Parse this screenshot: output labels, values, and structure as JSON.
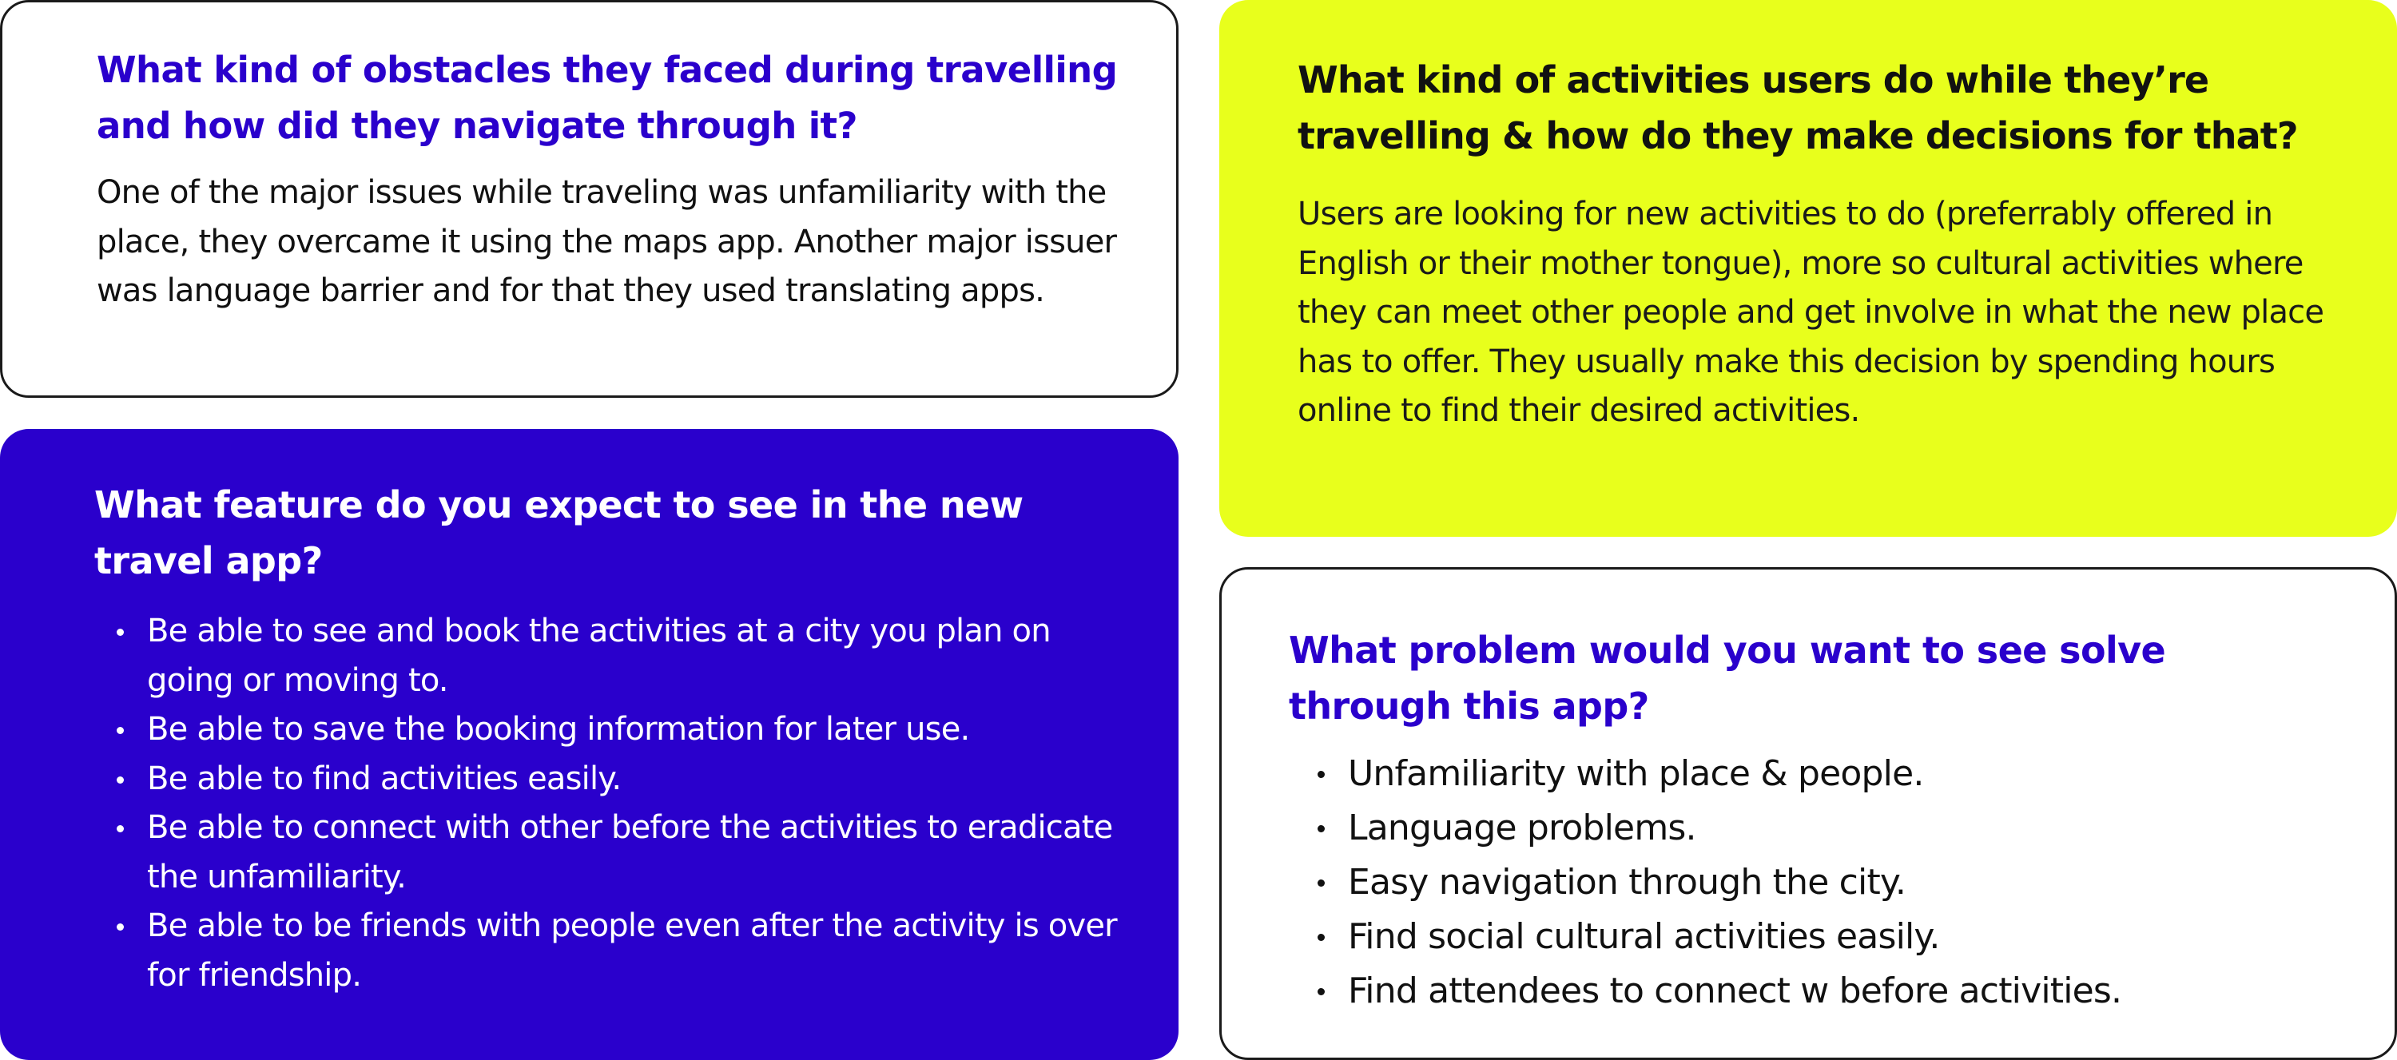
{
  "cards": {
    "obstacles": {
      "title": "What kind of obstacles they faced during travelling and how did they navigate through it?",
      "body": "One of the major issues while traveling was unfamiliarity with the place, they overcame it using the maps app. Another major issuer was language barrier and for that they used translating apps."
    },
    "features": {
      "title": "What feature do you expect to see in the new travel app?",
      "items": [
        "Be able to see and book  the activities at a city you plan on going or moving to.",
        "Be able to save the booking information for later use.",
        "Be able to find activities easily.",
        "Be able to connect with other before the activities to eradicate the unfamiliarity.",
        "Be able to be friends with people even after the activity is over for friendship."
      ]
    },
    "activities": {
      "title": "What kind of activities users do while they’re travelling & how do they make decisions for that?",
      "body": "Users are looking for new activities to do (preferrably offered in English or their mother tongue), more so cultural activities where they can meet other people and get involve in what the new place has to offer. They usually make this decision by spending hours online to find their desired activities."
    },
    "problems": {
      "title": "What problem would you want to see solve through this app?",
      "items": [
        "Unfamiliarity with place & people.",
        "Language problems.",
        "Easy navigation through the city.",
        "Find social cultural activities easily.",
        "Find attendees to connect w before activities."
      ]
    }
  },
  "colors": {
    "accent_blue": "#2a00cc",
    "accent_yellow": "#e8ff1c",
    "text_dark": "#111111",
    "border": "#1a1a1a"
  }
}
